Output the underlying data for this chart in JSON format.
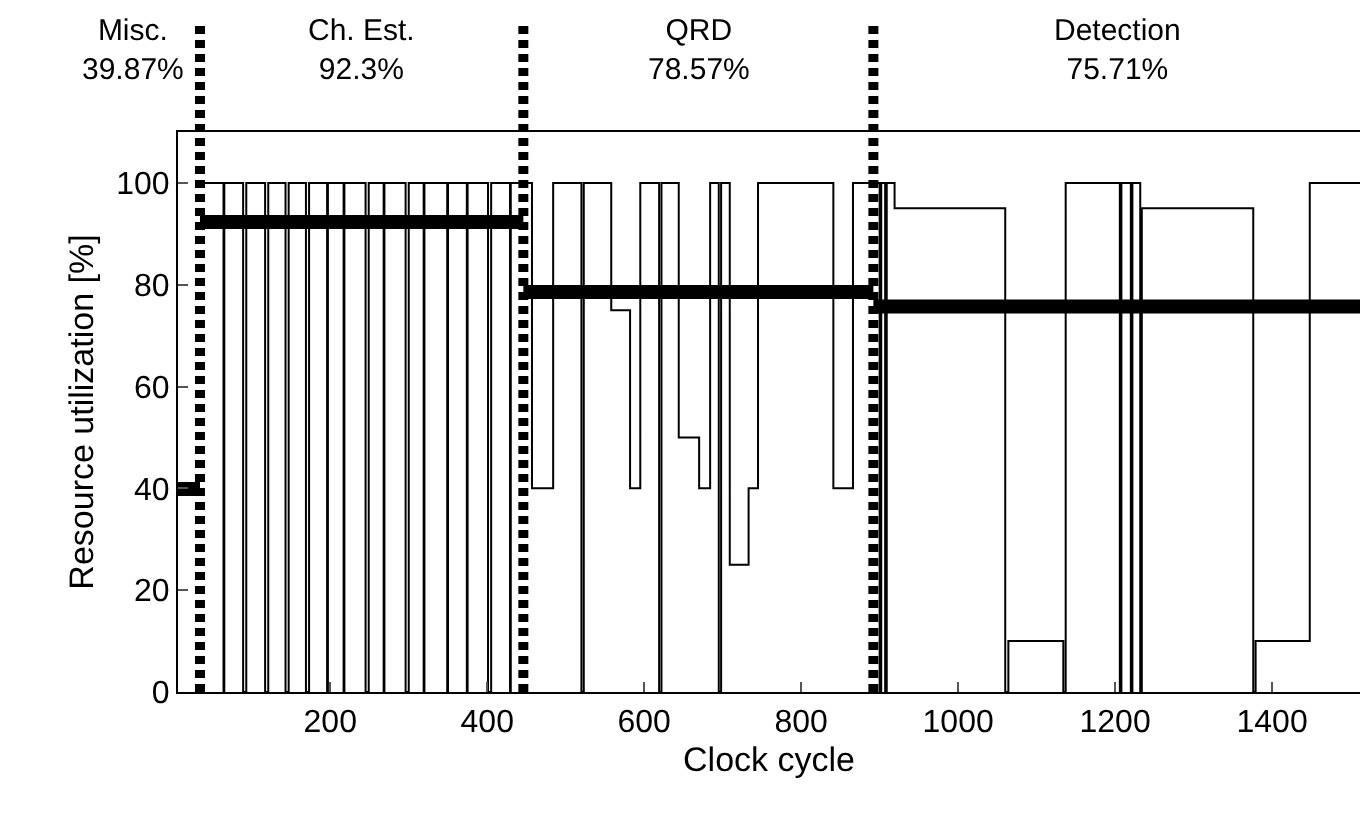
{
  "chart_data": {
    "type": "step",
    "xlabel": "Clock cycle",
    "ylabel": "Resource utilization [%]",
    "xlim": [
      6,
      1512
    ],
    "ylim": [
      0,
      110
    ],
    "xticks": [
      200,
      400,
      600,
      800,
      1000,
      1200,
      1400
    ],
    "yticks": [
      0,
      20,
      40,
      60,
      80,
      100
    ],
    "grid": false,
    "series": [
      {
        "color": "#000000",
        "x": [
          34,
          64,
          65,
          89,
          93,
          117,
          121,
          143,
          147,
          169,
          173,
          196,
          197,
          217,
          218,
          245,
          249,
          268,
          269,
          296,
          300,
          319,
          320,
          349,
          350,
          374,
          375,
          401,
          405,
          429,
          430,
          446,
          457,
          484,
          520,
          523,
          558,
          582,
          595,
          619,
          622,
          644,
          670,
          684,
          695,
          698,
          709,
          733,
          745,
          841,
          866,
          900,
          902,
          907,
          909,
          919,
          1060,
          1064,
          1134,
          1137,
          1206,
          1208,
          1220,
          1222,
          1232,
          1234,
          1376,
          1379,
          1448,
          1512
        ],
        "values": [
          100,
          0,
          100,
          0,
          100,
          0,
          100,
          0,
          100,
          0,
          100,
          0,
          100,
          0,
          100,
          0,
          100,
          0,
          100,
          0,
          100,
          0,
          100,
          0,
          100,
          0,
          100,
          0,
          100,
          0,
          100,
          100,
          40,
          100,
          0,
          100,
          75,
          40,
          100,
          0,
          100,
          50,
          40,
          100,
          0,
          100,
          25,
          40,
          100,
          40,
          100,
          0,
          100,
          0,
          100,
          95,
          0,
          10,
          0,
          100,
          0,
          100,
          0,
          100,
          0,
          95,
          0,
          10,
          100,
          100
        ]
      },
      {
        "type": "line",
        "color": "#000000",
        "x": [
          6,
          34
        ],
        "values": [
          39.87,
          39.87
        ]
      },
      {
        "type": "line",
        "color": "#000000",
        "x": [
          34,
          446
        ],
        "values": [
          92.3,
          92.3
        ]
      },
      {
        "type": "line",
        "color": "#000000",
        "x": [
          446,
          892
        ],
        "values": [
          78.57,
          78.57
        ]
      },
      {
        "type": "line",
        "color": "#000000",
        "x": [
          892,
          1512
        ],
        "values": [
          75.71,
          75.71
        ]
      }
    ],
    "ref_lines": [
      {
        "axis": "x",
        "value": 34,
        "line_style": "dashed",
        "color": "#000000"
      },
      {
        "axis": "x",
        "value": 446,
        "line_style": "dashed",
        "color": "#000000"
      },
      {
        "axis": "x",
        "value": 892,
        "line_style": "dashed",
        "color": "#000000"
      }
    ],
    "annotations": [
      "Misc.\n39.87%",
      "Ch. Est.\n92.3%",
      "QRD\n78.57%",
      "Detection\n75.71%"
    ]
  }
}
